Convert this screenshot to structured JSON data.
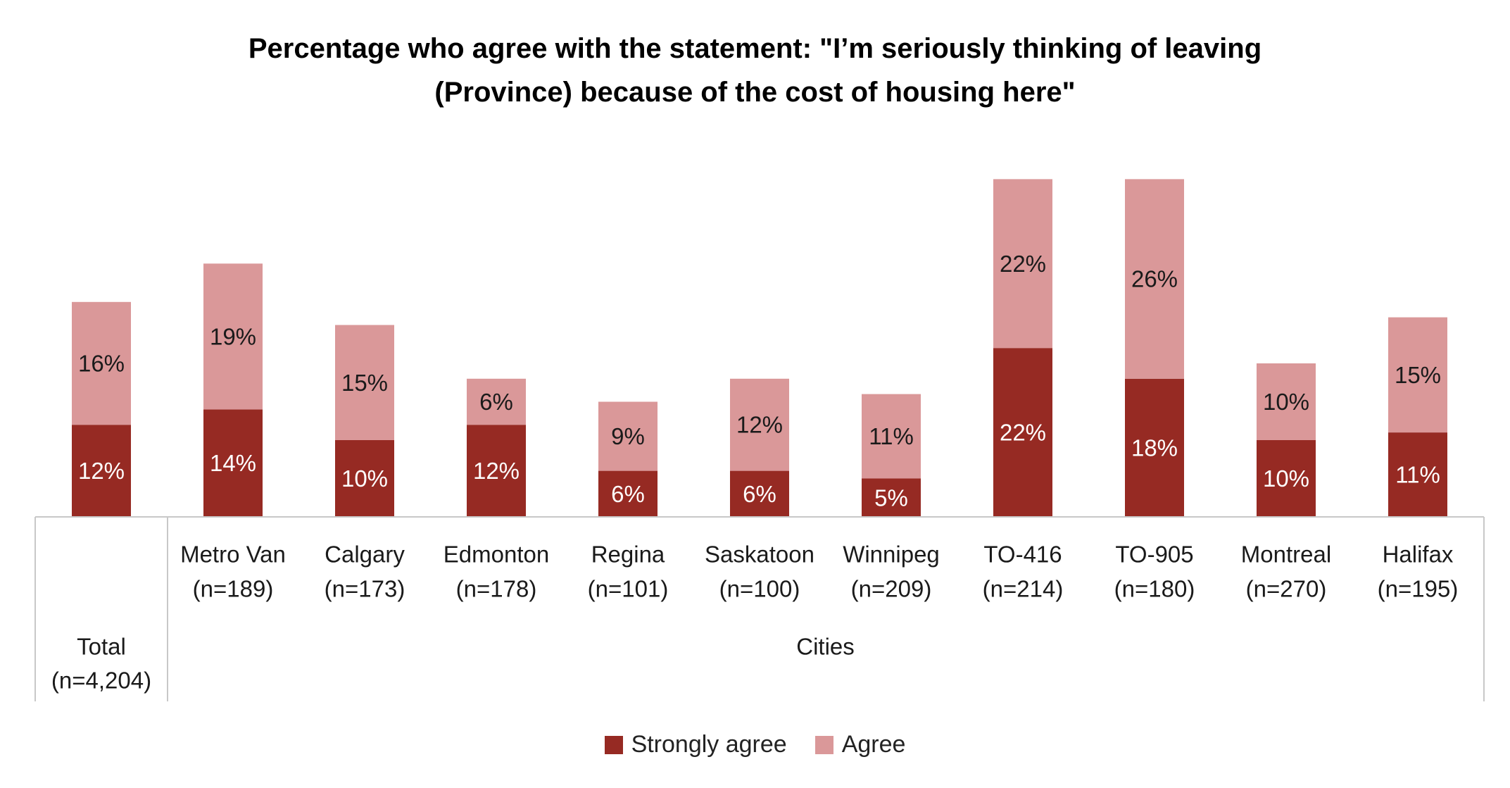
{
  "chart_data": {
    "type": "bar",
    "stacked": true,
    "title": "Percentage who agree with the statement: \"I’m seriously thinking of leaving (Province) because of the cost of housing here\"",
    "title_lines": [
      "Percentage who agree with the statement: \"I’m seriously thinking of leaving",
      "(Province) because of the cost of housing here\""
    ],
    "categories": [
      {
        "name": "Total",
        "n": "(n=4,204)"
      },
      {
        "name": "Metro Van",
        "n": "(n=189)"
      },
      {
        "name": "Calgary",
        "n": "(n=173)"
      },
      {
        "name": "Edmonton",
        "n": "(n=178)"
      },
      {
        "name": "Regina",
        "n": "(n=101)"
      },
      {
        "name": "Saskatoon",
        "n": "(n=100)"
      },
      {
        "name": "Winnipeg",
        "n": "(n=209)"
      },
      {
        "name": "TO-416",
        "n": "(n=214)"
      },
      {
        "name": "TO-905",
        "n": "(n=180)"
      },
      {
        "name": "Montreal",
        "n": "(n=270)"
      },
      {
        "name": "Halifax",
        "n": "(n=195)"
      }
    ],
    "groups": [
      {
        "label": "",
        "from": 0,
        "to": 0
      },
      {
        "label": "Cities",
        "from": 1,
        "to": 10
      }
    ],
    "series": [
      {
        "name": "Strongly agree",
        "color": "#962A23",
        "values": [
          12,
          14,
          10,
          12,
          6,
          6,
          5,
          22,
          18,
          10,
          11
        ],
        "labels": [
          "12%",
          "14%",
          "10%",
          "12%",
          "6%",
          "6%",
          "5%",
          "22%",
          "18%",
          "10%",
          "11%"
        ]
      },
      {
        "name": "Agree",
        "color": "#DA9899",
        "values": [
          16,
          19,
          15,
          6,
          9,
          12,
          11,
          22,
          26,
          10,
          15
        ],
        "labels": [
          "16%",
          "19%",
          "15%",
          "6%",
          "9%",
          "12%",
          "11%",
          "22%",
          "26%",
          "10%",
          "15%"
        ]
      }
    ],
    "legend": "bottom",
    "grid": false
  }
}
